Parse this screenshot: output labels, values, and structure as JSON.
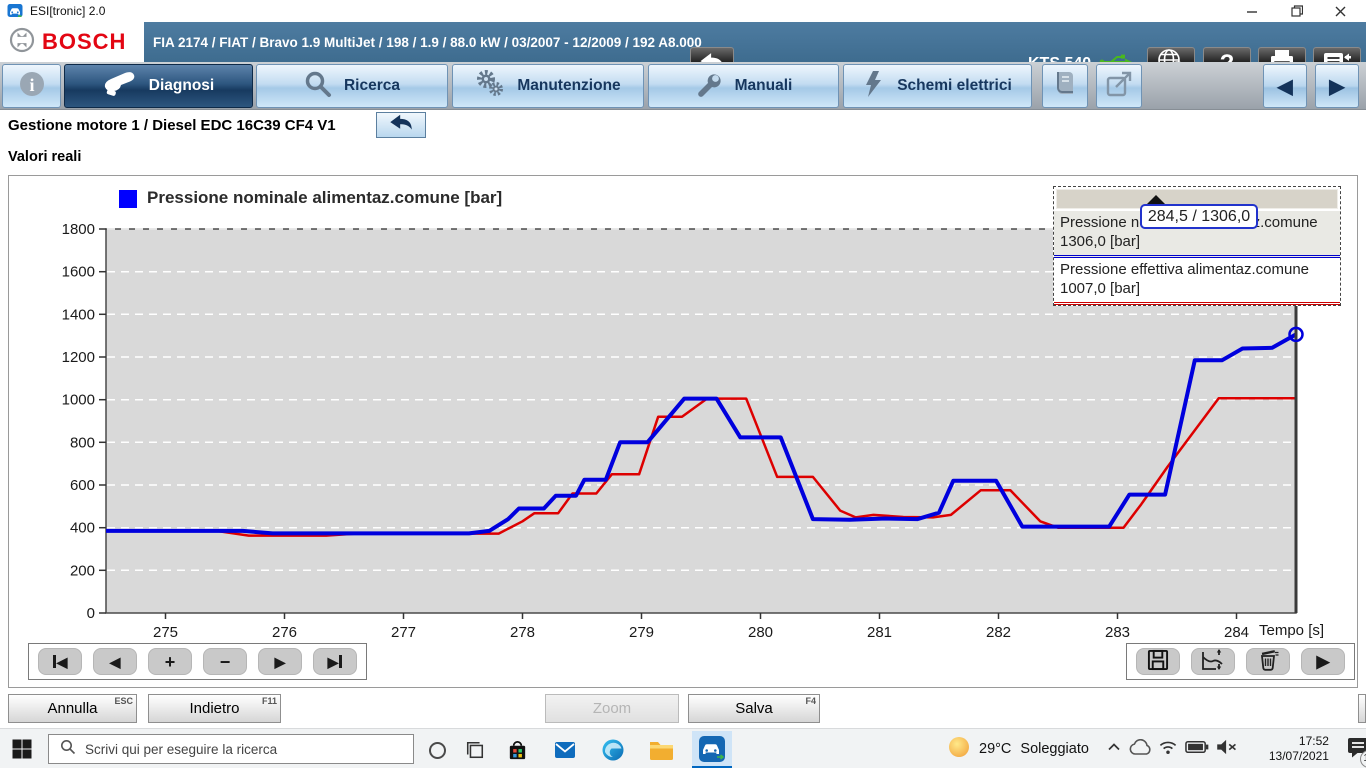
{
  "window": {
    "title": "ESI[tronic] 2.0",
    "controls": [
      "minimize",
      "restore",
      "close"
    ]
  },
  "header": {
    "brand": "BOSCH",
    "vehicle_info": "FIA 2174 / FIAT / Bravo 1.9 MultiJet / 198 / 1.9 / 88.0 kW / 03/2007 - 12/2009 / 192 A8.000",
    "device_label": "KTS 540",
    "icon_buttons": [
      "back-icon",
      "usb-icon",
      "globe-check-icon",
      "help-icon",
      "print-icon",
      "report-menu-icon"
    ]
  },
  "tabs": [
    {
      "label": "Diagnosi",
      "icon": "diagnosis-tester-icon",
      "selected": true
    },
    {
      "label": "Ricerca",
      "icon": "search-icon",
      "selected": false
    },
    {
      "label": "Manutenzione",
      "icon": "gears-icon",
      "selected": false
    },
    {
      "label": "Manuali",
      "icon": "wrench-icon",
      "selected": false
    },
    {
      "label": "Schemi elettrici",
      "icon": "lightning-icon",
      "selected": false
    }
  ],
  "tab_extra_icons": [
    "info-icon",
    "book-icon",
    "external-link-icon",
    "arrow-left-icon",
    "arrow-right-icon"
  ],
  "breadcrumb": {
    "path": "Gestione motore 1 / Diesel EDC 16C39 CF4 V1"
  },
  "section_title": "Valori reali",
  "chart_data": {
    "type": "line",
    "title": "Pressione nominale alimentaz.comune [bar]",
    "xlabel": "Tempo [s]",
    "ylabel": "",
    "xlim": [
      274.5,
      284.5
    ],
    "ylim": [
      0,
      1800
    ],
    "x_ticks": [
      275,
      276,
      277,
      278,
      279,
      280,
      281,
      282,
      283,
      284
    ],
    "y_ticks": [
      0,
      200,
      400,
      600,
      800,
      1000,
      1200,
      1400,
      1600,
      1800
    ],
    "grid": "horizontal-dashed-white",
    "plot_background": "#d9d9d9",
    "legend_position": "top-left",
    "series": [
      {
        "name": "Pressione nominale alimentaz.comune [bar]",
        "color": "#0000dd",
        "width": 4,
        "points": [
          [
            274.5,
            385
          ],
          [
            275.65,
            385
          ],
          [
            275.9,
            373
          ],
          [
            277.55,
            373
          ],
          [
            277.72,
            385
          ],
          [
            277.88,
            440
          ],
          [
            277.97,
            490
          ],
          [
            278.18,
            490
          ],
          [
            278.28,
            550
          ],
          [
            278.45,
            550
          ],
          [
            278.52,
            625
          ],
          [
            278.7,
            625
          ],
          [
            278.82,
            800
          ],
          [
            279.05,
            800
          ],
          [
            279.36,
            1005
          ],
          [
            279.63,
            1005
          ],
          [
            279.83,
            823
          ],
          [
            280.17,
            823
          ],
          [
            280.44,
            440
          ],
          [
            280.75,
            437
          ],
          [
            281.05,
            443
          ],
          [
            281.32,
            440
          ],
          [
            281.5,
            470
          ],
          [
            281.62,
            620
          ],
          [
            281.98,
            620
          ],
          [
            282.2,
            405
          ],
          [
            282.93,
            405
          ],
          [
            283.1,
            555
          ],
          [
            283.4,
            555
          ],
          [
            283.65,
            1185
          ],
          [
            283.88,
            1185
          ],
          [
            284.05,
            1240
          ],
          [
            284.3,
            1243
          ],
          [
            284.5,
            1306
          ]
        ]
      },
      {
        "name": "Pressione effettiva alimentaz.comune [bar]",
        "color": "#dd0000",
        "width": 2.5,
        "points": [
          [
            274.5,
            383
          ],
          [
            275.45,
            383
          ],
          [
            275.7,
            363
          ],
          [
            276.35,
            363
          ],
          [
            276.6,
            372
          ],
          [
            277.8,
            372
          ],
          [
            278.0,
            430
          ],
          [
            278.1,
            468
          ],
          [
            278.3,
            468
          ],
          [
            278.42,
            560
          ],
          [
            278.62,
            560
          ],
          [
            278.75,
            650
          ],
          [
            278.98,
            650
          ],
          [
            279.14,
            920
          ],
          [
            279.34,
            920
          ],
          [
            279.55,
            1005
          ],
          [
            279.88,
            1005
          ],
          [
            280.14,
            638
          ],
          [
            280.44,
            638
          ],
          [
            280.67,
            480
          ],
          [
            280.8,
            448
          ],
          [
            280.95,
            460
          ],
          [
            281.2,
            450
          ],
          [
            281.45,
            448
          ],
          [
            281.6,
            460
          ],
          [
            281.85,
            575
          ],
          [
            282.1,
            575
          ],
          [
            282.35,
            430
          ],
          [
            282.5,
            400
          ],
          [
            283.05,
            400
          ],
          [
            283.2,
            510
          ],
          [
            283.42,
            685
          ],
          [
            283.85,
            1007
          ],
          [
            284.5,
            1007
          ]
        ]
      }
    ],
    "cursor": {
      "time": 284.5,
      "values": [
        1306.0,
        1007.0
      ]
    }
  },
  "tooltip": {
    "cursor_label": "284,5 / 1306,0",
    "rows": [
      {
        "name": "Pressione nominale alimentaz.comune",
        "value": "1306,0 [bar]",
        "color": "#0000cc"
      },
      {
        "name": "Pressione effettiva alimentaz.comune",
        "value": "1007,0 [bar]",
        "color": "#cc0000"
      }
    ]
  },
  "chart_toolbar": {
    "left_icons": [
      "first-icon",
      "previous-icon",
      "zoom-in-icon",
      "zoom-out-icon",
      "next-icon",
      "last-icon"
    ],
    "right_icons": [
      "save-icon",
      "auto-scale-icon",
      "delete-icon",
      "play-icon"
    ],
    "zoom_in_label": "+",
    "zoom_out_label": "−",
    "prev_label": "◀",
    "next_label": "▶"
  },
  "footer_buttons": [
    {
      "label": "Annulla",
      "hint": "ESC",
      "disabled": false
    },
    {
      "label": "Indietro",
      "hint": "F11",
      "disabled": false
    },
    {
      "label": "Zoom",
      "hint": "",
      "disabled": true
    },
    {
      "label": "Salva",
      "hint": "F4",
      "disabled": false
    }
  ],
  "taskbar": {
    "search_placeholder": "Scrivi qui per eseguire la ricerca",
    "app_icons": [
      "start-icon",
      "cortana-icon",
      "task-view-icon",
      "store-icon",
      "mail-icon",
      "edge-icon",
      "file-explorer-icon",
      "esitronic-icon"
    ],
    "weather": {
      "temp": "29°C",
      "condition": "Soleggiato"
    },
    "tray_icons": [
      "chevron-up-icon",
      "onedrive-cloud-icon",
      "wifi-icon",
      "battery-icon",
      "volume-muted-icon"
    ],
    "clock": {
      "time": "17:52",
      "date": "13/07/2021"
    },
    "notification_count": "13"
  }
}
